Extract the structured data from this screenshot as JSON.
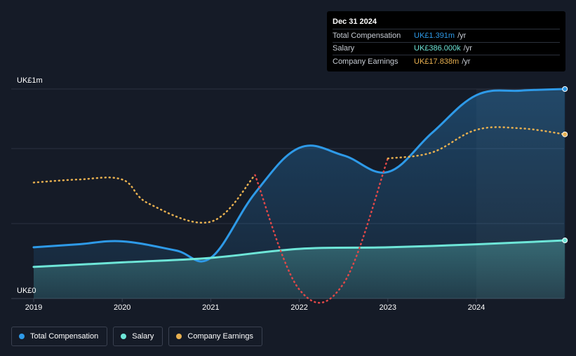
{
  "tooltip": {
    "date": "Dec 31 2024",
    "rows": [
      {
        "label": "Total Compensation",
        "value": "UK£1.391m",
        "unit": "/yr",
        "color": "#2e9ae8"
      },
      {
        "label": "Salary",
        "value": "UK£386.000k",
        "unit": "/yr",
        "color": "#6ee6d8"
      },
      {
        "label": "Company Earnings",
        "value": "UK£17.838m",
        "unit": "/yr",
        "color": "#e8b050"
      }
    ]
  },
  "legend": [
    {
      "label": "Total Compensation",
      "color": "#2e9ae8"
    },
    {
      "label": "Salary",
      "color": "#6ee6d8"
    },
    {
      "label": "Company Earnings",
      "color": "#e8b050"
    }
  ],
  "chart_data": {
    "type": "area",
    "title": "",
    "xlabel": "",
    "ylabel": "",
    "y_tick_labels": [
      "UK£0",
      "UK£1m"
    ],
    "x_tick_labels": [
      "2019",
      "2020",
      "2021",
      "2022",
      "2023",
      "2024"
    ],
    "xlim": [
      2019.0,
      2025.0
    ],
    "ylim": [
      0,
      1.391
    ],
    "grid": true,
    "legend_position": "bottom-left",
    "series": [
      {
        "name": "Total Compensation",
        "unit": "UK£m",
        "color": "#2e9ae8",
        "x": [
          2019.0,
          2019.5,
          2020.0,
          2020.6,
          2021.0,
          2021.5,
          2022.0,
          2022.5,
          2023.0,
          2023.5,
          2024.0,
          2024.5,
          2025.0
        ],
        "values": [
          0.34,
          0.36,
          0.38,
          0.32,
          0.27,
          0.7,
          1.0,
          0.95,
          0.84,
          1.1,
          1.35,
          1.38,
          1.391
        ]
      },
      {
        "name": "Salary",
        "unit": "UK£m",
        "color": "#6ee6d8",
        "x": [
          2019.0,
          2020.0,
          2021.0,
          2022.0,
          2023.0,
          2024.0,
          2025.0
        ],
        "values": [
          0.21,
          0.24,
          0.27,
          0.33,
          0.34,
          0.36,
          0.386
        ]
      },
      {
        "name": "Company Earnings",
        "unit": "relative",
        "color": "#e8b050",
        "negative_color": "#e04848",
        "x": [
          2019.0,
          2019.5,
          2020.0,
          2020.3,
          2021.0,
          2021.5,
          2022.0,
          2022.5,
          2023.0,
          2023.5,
          2024.0,
          2024.5,
          2025.0
        ],
        "values": [
          0.77,
          0.79,
          0.79,
          0.63,
          0.51,
          0.82,
          0.06,
          0.1,
          0.93,
          0.97,
          1.12,
          1.13,
          1.09
        ]
      }
    ]
  }
}
